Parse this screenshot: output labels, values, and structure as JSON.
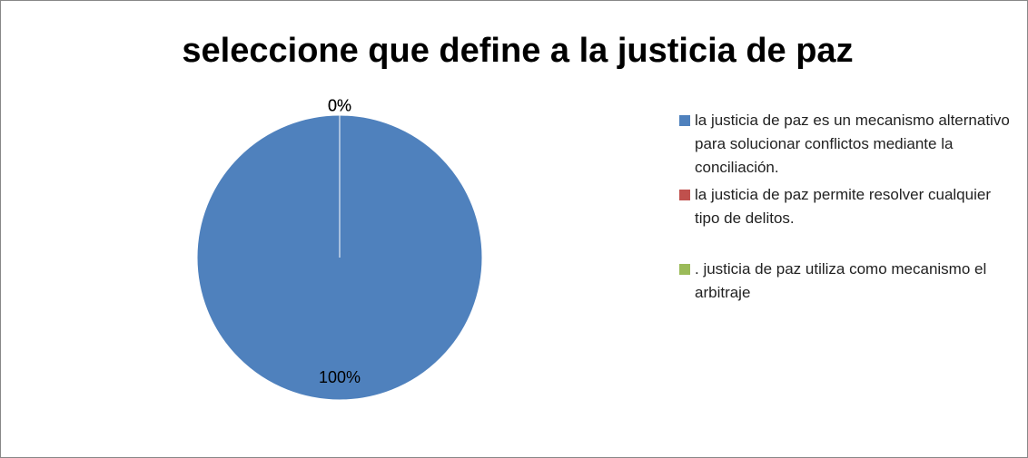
{
  "chart_data": {
    "type": "pie",
    "title": "seleccione que define a la justicia de paz",
    "categories": [
      "la justicia de paz es un mecanismo alternativo para solucionar conflictos mediante la conciliación.",
      "la justicia de paz permite resolver cualquier tipo de delitos.",
      ". justicia de paz utiliza como mecanismo el arbitraje"
    ],
    "values": [
      100,
      0,
      0
    ],
    "value_labels": [
      "100%",
      "0%",
      "0%"
    ],
    "colors": [
      "#4f81bd",
      "#c0504d",
      "#9bbb59"
    ],
    "legend": "right"
  }
}
